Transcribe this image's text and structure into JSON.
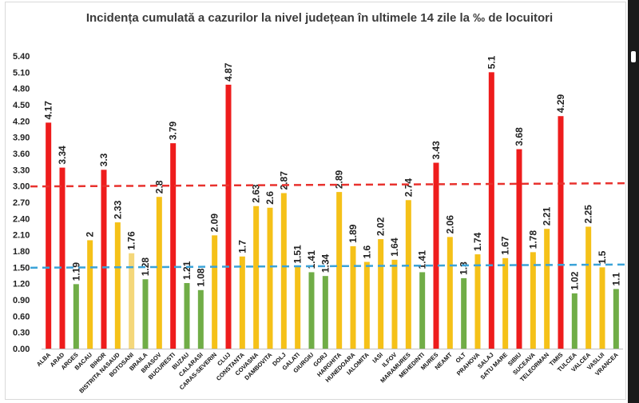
{
  "chart_data": {
    "type": "bar",
    "title": "Incidența cumulată a cazurilor la nivel județean în ultimele 14 zile la ‰ de locuitori",
    "categories": [
      "ALBA",
      "ARAD",
      "ARGES",
      "BACAU",
      "BIHOR",
      "BISTRITA NASAUD",
      "BOTOSANI",
      "BRAILA",
      "BRASOV",
      "BUCURESTI",
      "BUZAU",
      "CALARASI",
      "CARAS-SEVERIN",
      "CLUJ",
      "CONSTANTA",
      "COVASNA",
      "DAMBOVITA",
      "DOLJ",
      "GALATI",
      "GIURGIU",
      "GORJ",
      "HARGHITA",
      "HUNEDOARA",
      "IALOMITA",
      "IASI",
      "ILFOV",
      "MARAMURES",
      "MEHEDINTI",
      "MURES",
      "NEAMT",
      "OLT",
      "PRAHOVA",
      "SALAJ",
      "SATU MARE",
      "SIBIU",
      "SUCEAVA",
      "TELEORMAN",
      "TIMIS",
      "TULCEA",
      "VALCEA",
      "VASLUI",
      "VRANCEA"
    ],
    "values": [
      4.17,
      3.34,
      1.19,
      2,
      3.3,
      2.33,
      1.76,
      1.28,
      2.8,
      3.79,
      1.21,
      1.08,
      2.09,
      4.87,
      1.7,
      2.63,
      2.6,
      2.87,
      1.51,
      1.41,
      1.34,
      2.89,
      1.89,
      1.6,
      2.02,
      1.64,
      2.74,
      1.41,
      3.43,
      2.06,
      1.3,
      1.74,
      5.1,
      1.67,
      3.68,
      1.78,
      2.21,
      4.29,
      1.02,
      2.25,
      1.5,
      1.1
    ],
    "value_labels": [
      "4.17",
      "3.34",
      "1.19",
      "2",
      "3.3",
      "2.33",
      "1.76",
      "1.28",
      "2.8",
      "3.79",
      "1.21",
      "1.08",
      "2.09",
      "4.87",
      "1.7",
      "2.63",
      "2.6",
      "2.87",
      "1.51",
      "1.41",
      "1.34",
      "2.89",
      "1.89",
      "1.6",
      "2.02",
      "1.64",
      "2.74",
      "1.41",
      "3.43",
      "2.06",
      "1.3",
      "1.74",
      "5.1",
      "1.67",
      "3.68",
      "1.78",
      "2.21",
      "4.29",
      "1.02",
      "2.25",
      "1.5",
      "1.1"
    ],
    "ylim": [
      0,
      5.4
    ],
    "yticks": [
      "0.00",
      "0.30",
      "0.60",
      "0.90",
      "1.20",
      "1.50",
      "1.80",
      "2.10",
      "2.40",
      "2.70",
      "3.00",
      "3.30",
      "3.60",
      "3.90",
      "4.20",
      "4.50",
      "4.80",
      "5.10",
      "5.40"
    ],
    "grid": false,
    "reference_lines": [
      {
        "value": 3.0,
        "color": "#e8322e",
        "style": "dashed"
      },
      {
        "value": 1.5,
        "color": "#3ba3d8",
        "style": "dashed"
      }
    ],
    "colors": {
      "red": "#ee1c1c",
      "yellow": "#f5c118",
      "light_yellow": "#f4d77a",
      "green": "#70ad47"
    },
    "bar_colors": [
      "red",
      "red",
      "green",
      "yellow",
      "red",
      "yellow",
      "light_yellow",
      "green",
      "yellow",
      "red",
      "green",
      "green",
      "yellow",
      "red",
      "yellow",
      "yellow",
      "yellow",
      "yellow",
      "yellow",
      "green",
      "green",
      "yellow",
      "yellow",
      "yellow",
      "yellow",
      "yellow",
      "yellow",
      "green",
      "red",
      "yellow",
      "green",
      "yellow",
      "red",
      "yellow",
      "red",
      "yellow",
      "yellow",
      "red",
      "green",
      "yellow",
      "yellow",
      "green"
    ]
  }
}
